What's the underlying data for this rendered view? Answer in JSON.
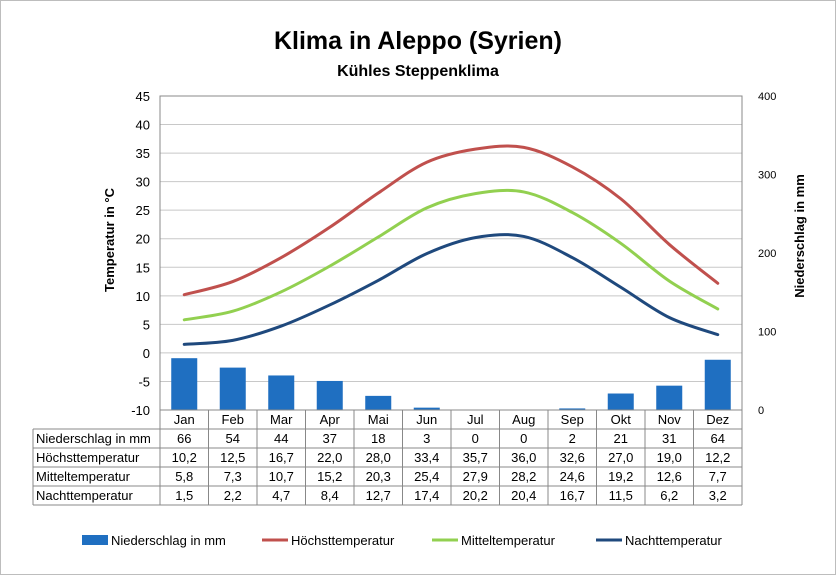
{
  "chart_data": {
    "type": "bar+line",
    "title": "Klima in Aleppo (Syrien)",
    "subtitle": "Kühles Steppenklima",
    "categories": [
      "Jan",
      "Feb",
      "Mar",
      "Apr",
      "Mai",
      "Jun",
      "Jul",
      "Aug",
      "Sep",
      "Okt",
      "Nov",
      "Dez"
    ],
    "y_left": {
      "label": "Temperatur in °C",
      "range": [
        -10,
        45
      ],
      "ticks": [
        -10,
        -5,
        0,
        5,
        10,
        15,
        20,
        25,
        30,
        35,
        40,
        45
      ]
    },
    "y_right": {
      "label": "Niederschlag in mm",
      "range": [
        0,
        400
      ],
      "ticks": [
        0,
        100,
        200,
        300,
        400
      ]
    },
    "grid": true,
    "legend_position": "bottom",
    "series": [
      {
        "name": "Niederschlag in mm",
        "type": "bar",
        "axis": "right",
        "color": "#1f6fc1",
        "values": [
          66,
          54,
          44,
          37,
          18,
          3,
          0,
          0,
          2,
          21,
          31,
          64
        ],
        "display": [
          "66",
          "54",
          "44",
          "37",
          "18",
          "3",
          "0",
          "0",
          "2",
          "21",
          "31",
          "64"
        ]
      },
      {
        "name": "Höchsttemperatur",
        "type": "line",
        "axis": "left",
        "color": "#c0504d",
        "values": [
          10.2,
          12.5,
          16.7,
          22.0,
          28.0,
          33.4,
          35.7,
          36.0,
          32.6,
          27.0,
          19.0,
          12.2
        ],
        "display": [
          "10,2",
          "12,5",
          "16,7",
          "22,0",
          "28,0",
          "33,4",
          "35,7",
          "36,0",
          "32,6",
          "27,0",
          "19,0",
          "12,2"
        ]
      },
      {
        "name": "Mitteltemperatur",
        "type": "line",
        "axis": "left",
        "color": "#92d050",
        "values": [
          5.8,
          7.3,
          10.7,
          15.2,
          20.3,
          25.4,
          27.9,
          28.2,
          24.6,
          19.2,
          12.6,
          7.7
        ],
        "display": [
          "5,8",
          "7,3",
          "10,7",
          "15,2",
          "20,3",
          "25,4",
          "27,9",
          "28,2",
          "24,6",
          "19,2",
          "12,6",
          "7,7"
        ]
      },
      {
        "name": "Nachttemperatur",
        "type": "line",
        "axis": "left",
        "color": "#1f497d",
        "values": [
          1.5,
          2.2,
          4.7,
          8.4,
          12.7,
          17.4,
          20.2,
          20.4,
          16.7,
          11.5,
          6.2,
          3.2
        ],
        "display": [
          "1,5",
          "2,2",
          "4,7",
          "8,4",
          "12,7",
          "17,4",
          "20,2",
          "20,4",
          "16,7",
          "11,5",
          "6,2",
          "3,2"
        ]
      }
    ]
  }
}
